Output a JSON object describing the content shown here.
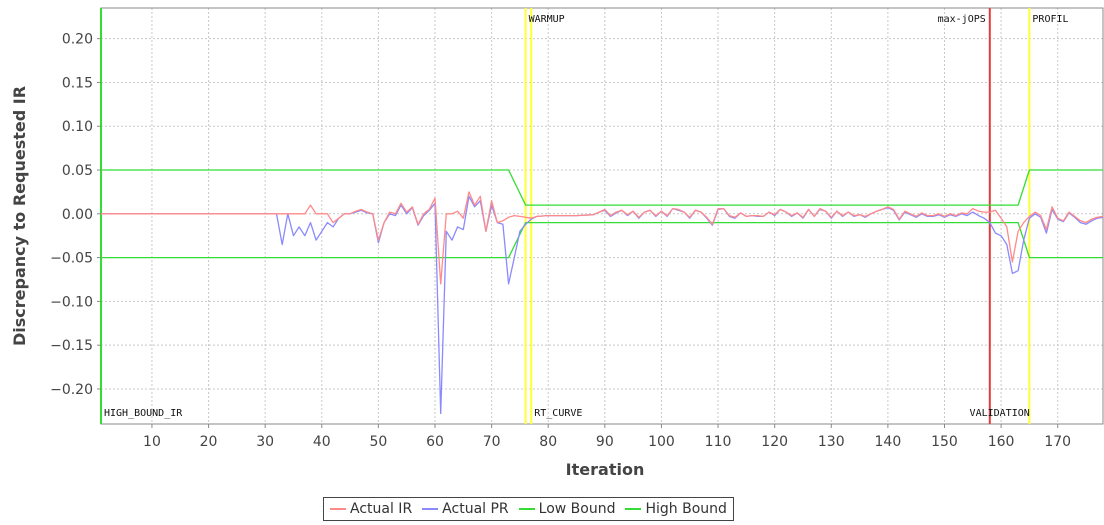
{
  "colors": {
    "actual_ir": "#ff8a8a",
    "actual_pr": "#8a8aff",
    "bounds": "#33dd33",
    "phase_marker": "#ffff33",
    "max_jops_marker": "#e23b3b",
    "grid": "#c8c8c8",
    "axis": "#888888"
  },
  "legend": {
    "items": [
      {
        "label": "Actual IR",
        "color": "#ff8a8a"
      },
      {
        "label": "Actual PR",
        "color": "#8a8aff"
      },
      {
        "label": "Low Bound",
        "color": "#33dd33"
      },
      {
        "label": "High Bound",
        "color": "#33dd33"
      }
    ]
  },
  "chart_data": {
    "type": "line",
    "title": "",
    "xlabel": "Iteration",
    "ylabel": "Discrepancy to Requested IR",
    "xlim": [
      1,
      178
    ],
    "ylim": [
      -0.24,
      0.235
    ],
    "x_ticks": [
      10,
      20,
      30,
      40,
      50,
      60,
      70,
      80,
      90,
      100,
      110,
      120,
      130,
      140,
      150,
      160,
      170
    ],
    "y_ticks": [
      0.2,
      0.15,
      0.1,
      0.05,
      0.0,
      -0.05,
      -0.1,
      -0.15,
      -0.2
    ],
    "y_tick_labels": [
      "0.20",
      "0.15",
      "0.10",
      "0.05",
      "0.00",
      "−0.05",
      "−0.10",
      "−0.15",
      "−0.20"
    ],
    "grid": true,
    "legend_position": "bottom",
    "markers": [
      {
        "x": 1,
        "color": "#33dd33",
        "label_top": "",
        "label_bottom": "HIGH_BOUND_IR"
      },
      {
        "x": 76,
        "color": "#ffff33",
        "label_top": "WARMUP",
        "label_bottom": ""
      },
      {
        "x": 77,
        "color": "#ffff33",
        "label_top": "",
        "label_bottom": "RT_CURVE"
      },
      {
        "x": 158,
        "color": "#e23b3b",
        "label_top": "max-jOPS",
        "label_bottom": "VALIDATION"
      },
      {
        "x": 165,
        "color": "#ffff33",
        "label_top": "PROFIL",
        "label_bottom": ""
      }
    ],
    "series": [
      {
        "name": "Actual IR",
        "color": "#ff8a8a",
        "points": [
          [
            1,
            0
          ],
          [
            32,
            0
          ],
          [
            33,
            0
          ],
          [
            34,
            0
          ],
          [
            35,
            0
          ],
          [
            36,
            0
          ],
          [
            37,
            0
          ],
          [
            38,
            0.01
          ],
          [
            39,
            0
          ],
          [
            40,
            0
          ],
          [
            41,
            0
          ],
          [
            42,
            -0.01
          ],
          [
            43,
            -0.005
          ],
          [
            44,
            0
          ],
          [
            45,
            0
          ],
          [
            46,
            0.003
          ],
          [
            47,
            0.005
          ],
          [
            48,
            0.002
          ],
          [
            49,
            0
          ],
          [
            50,
            -0.03
          ],
          [
            51,
            -0.01
          ],
          [
            52,
            0.002
          ],
          [
            53,
            0
          ],
          [
            54,
            0.012
          ],
          [
            55,
            0.002
          ],
          [
            56,
            0.008
          ],
          [
            57,
            -0.012
          ],
          [
            58,
            0
          ],
          [
            59,
            0.005
          ],
          [
            60,
            0.018
          ],
          [
            61,
            -0.08
          ],
          [
            62,
            0
          ],
          [
            63,
            0
          ],
          [
            64,
            0.003
          ],
          [
            65,
            -0.005
          ],
          [
            66,
            0.025
          ],
          [
            67,
            0.01
          ],
          [
            68,
            0.02
          ],
          [
            69,
            -0.02
          ],
          [
            70,
            0.015
          ],
          [
            71,
            -0.01
          ],
          [
            72,
            -0.008
          ],
          [
            73,
            -0.004
          ],
          [
            74,
            -0.002
          ],
          [
            75,
            -0.003
          ],
          [
            76,
            -0.004
          ],
          [
            77,
            -0.005
          ],
          [
            78,
            -0.003
          ],
          [
            80,
            -0.002
          ],
          [
            85,
            -0.002
          ],
          [
            88,
            -0.001
          ],
          [
            89,
            0.002
          ],
          [
            90,
            0.005
          ],
          [
            91,
            -0.002
          ],
          [
            92,
            0.002
          ],
          [
            93,
            0.004
          ],
          [
            94,
            -0.001
          ],
          [
            95,
            0.003
          ],
          [
            96,
            -0.004
          ],
          [
            97,
            0.002
          ],
          [
            98,
            0.004
          ],
          [
            99,
            -0.002
          ],
          [
            100,
            0.003
          ],
          [
            101,
            -0.002
          ],
          [
            102,
            0.006
          ],
          [
            103,
            0.005
          ],
          [
            104,
            0.002
          ],
          [
            105,
            -0.004
          ],
          [
            106,
            0.004
          ],
          [
            107,
            0.002
          ],
          [
            108,
            -0.004
          ],
          [
            109,
            -0.012
          ],
          [
            110,
            0.006
          ],
          [
            111,
            0.006
          ],
          [
            112,
            -0.002
          ],
          [
            113,
            -0.004
          ],
          [
            114,
            0.001
          ],
          [
            115,
            -0.003
          ],
          [
            116,
            -0.002
          ],
          [
            117,
            -0.002
          ],
          [
            118,
            -0.003
          ],
          [
            119,
            0.002
          ],
          [
            120,
            -0.001
          ],
          [
            121,
            0.005
          ],
          [
            122,
            0.002
          ],
          [
            123,
            -0.002
          ],
          [
            124,
            0.001
          ],
          [
            125,
            -0.004
          ],
          [
            126,
            0.005
          ],
          [
            127,
            -0.003
          ],
          [
            128,
            0.006
          ],
          [
            129,
            0.003
          ],
          [
            130,
            -0.004
          ],
          [
            131,
            0.003
          ],
          [
            132,
            -0.002
          ],
          [
            133,
            0.002
          ],
          [
            134,
            -0.002
          ],
          [
            135,
            -0.001
          ],
          [
            136,
            -0.003
          ],
          [
            137,
            0
          ],
          [
            138,
            0.003
          ],
          [
            139,
            0.005
          ],
          [
            140,
            0.008
          ],
          [
            141,
            0.005
          ],
          [
            142,
            -0.006
          ],
          [
            143,
            0.003
          ],
          [
            144,
            0
          ],
          [
            145,
            -0.003
          ],
          [
            146,
            0.001
          ],
          [
            147,
            -0.002
          ],
          [
            148,
            -0.002
          ],
          [
            149,
            0
          ],
          [
            150,
            -0.003
          ],
          [
            151,
            0
          ],
          [
            152,
            -0.002
          ],
          [
            153,
            0.001
          ],
          [
            154,
            0
          ],
          [
            155,
            0.006
          ],
          [
            156,
            0.003
          ],
          [
            157,
            0.002
          ],
          [
            158,
            0.002
          ],
          [
            159,
            0.004
          ],
          [
            160,
            -0.005
          ],
          [
            161,
            -0.015
          ],
          [
            162,
            -0.055
          ],
          [
            163,
            -0.02
          ],
          [
            164,
            -0.01
          ],
          [
            165,
            -0.003
          ],
          [
            166,
            0.002
          ],
          [
            167,
            -0.002
          ],
          [
            168,
            -0.018
          ],
          [
            169,
            0.008
          ],
          [
            170,
            -0.005
          ],
          [
            171,
            -0.008
          ],
          [
            172,
            0.002
          ],
          [
            173,
            -0.003
          ],
          [
            174,
            -0.008
          ],
          [
            175,
            -0.01
          ],
          [
            176,
            -0.006
          ],
          [
            177,
            -0.004
          ],
          [
            178,
            -0.003
          ]
        ]
      },
      {
        "name": "Actual PR",
        "color": "#8a8aff",
        "points": [
          [
            1,
            0
          ],
          [
            32,
            0
          ],
          [
            33,
            -0.035
          ],
          [
            34,
            0
          ],
          [
            35,
            -0.025
          ],
          [
            36,
            -0.015
          ],
          [
            37,
            -0.025
          ],
          [
            38,
            -0.01
          ],
          [
            39,
            -0.03
          ],
          [
            40,
            -0.02
          ],
          [
            41,
            -0.01
          ],
          [
            42,
            -0.015
          ],
          [
            43,
            -0.005
          ],
          [
            44,
            0
          ],
          [
            45,
            0
          ],
          [
            46,
            0.002
          ],
          [
            47,
            0.004
          ],
          [
            48,
            0.001
          ],
          [
            49,
            0
          ],
          [
            50,
            -0.033
          ],
          [
            51,
            -0.01
          ],
          [
            52,
            0
          ],
          [
            53,
            -0.002
          ],
          [
            54,
            0.01
          ],
          [
            55,
            0
          ],
          [
            56,
            0.007
          ],
          [
            57,
            -0.013
          ],
          [
            58,
            -0.002
          ],
          [
            59,
            0.004
          ],
          [
            60,
            0.012
          ],
          [
            61,
            -0.228
          ],
          [
            62,
            -0.02
          ],
          [
            63,
            -0.03
          ],
          [
            64,
            -0.015
          ],
          [
            65,
            -0.018
          ],
          [
            66,
            0.02
          ],
          [
            67,
            0.008
          ],
          [
            68,
            0.015
          ],
          [
            69,
            -0.02
          ],
          [
            70,
            0.01
          ],
          [
            71,
            -0.01
          ],
          [
            72,
            -0.012
          ],
          [
            73,
            -0.08
          ],
          [
            74,
            -0.05
          ],
          [
            75,
            -0.02
          ],
          [
            76,
            -0.012
          ],
          [
            77,
            -0.006
          ],
          [
            78,
            -0.003
          ],
          [
            80,
            -0.002
          ],
          [
            85,
            -0.002
          ],
          [
            88,
            -0.001
          ],
          [
            89,
            0.002
          ],
          [
            90,
            0.004
          ],
          [
            91,
            -0.003
          ],
          [
            92,
            0.001
          ],
          [
            93,
            0.004
          ],
          [
            94,
            -0.002
          ],
          [
            95,
            0.003
          ],
          [
            96,
            -0.005
          ],
          [
            97,
            0.002
          ],
          [
            98,
            0.004
          ],
          [
            99,
            -0.003
          ],
          [
            100,
            0.003
          ],
          [
            101,
            -0.003
          ],
          [
            102,
            0.006
          ],
          [
            103,
            0.004
          ],
          [
            104,
            0.002
          ],
          [
            105,
            -0.005
          ],
          [
            106,
            0.004
          ],
          [
            107,
            0.002
          ],
          [
            108,
            -0.005
          ],
          [
            109,
            -0.013
          ],
          [
            110,
            0.005
          ],
          [
            111,
            0.006
          ],
          [
            112,
            -0.003
          ],
          [
            113,
            -0.005
          ],
          [
            114,
            0.001
          ],
          [
            115,
            -0.003
          ],
          [
            116,
            -0.002
          ],
          [
            117,
            -0.003
          ],
          [
            118,
            -0.003
          ],
          [
            119,
            0.002
          ],
          [
            120,
            -0.002
          ],
          [
            121,
            0.005
          ],
          [
            122,
            0.002
          ],
          [
            123,
            -0.003
          ],
          [
            124,
            0.001
          ],
          [
            125,
            -0.005
          ],
          [
            126,
            0.005
          ],
          [
            127,
            -0.003
          ],
          [
            128,
            0.005
          ],
          [
            129,
            0.003
          ],
          [
            130,
            -0.005
          ],
          [
            131,
            0.003
          ],
          [
            132,
            -0.003
          ],
          [
            133,
            0.002
          ],
          [
            134,
            -0.003
          ],
          [
            135,
            -0.001
          ],
          [
            136,
            -0.004
          ],
          [
            137,
            0
          ],
          [
            138,
            0.003
          ],
          [
            139,
            0.005
          ],
          [
            140,
            0.007
          ],
          [
            141,
            0.004
          ],
          [
            142,
            -0.007
          ],
          [
            143,
            0.002
          ],
          [
            144,
            -0.001
          ],
          [
            145,
            -0.004
          ],
          [
            146,
            0
          ],
          [
            147,
            -0.003
          ],
          [
            148,
            -0.003
          ],
          [
            149,
            -0.001
          ],
          [
            150,
            -0.004
          ],
          [
            151,
            -0.001
          ],
          [
            152,
            -0.003
          ],
          [
            153,
            0
          ],
          [
            154,
            -0.002
          ],
          [
            155,
            0.002
          ],
          [
            156,
            -0.002
          ],
          [
            157,
            -0.005
          ],
          [
            158,
            -0.01
          ],
          [
            159,
            -0.022
          ],
          [
            160,
            -0.025
          ],
          [
            161,
            -0.035
          ],
          [
            162,
            -0.068
          ],
          [
            163,
            -0.065
          ],
          [
            164,
            -0.03
          ],
          [
            165,
            -0.005
          ],
          [
            166,
            0
          ],
          [
            167,
            -0.004
          ],
          [
            168,
            -0.022
          ],
          [
            169,
            0.005
          ],
          [
            170,
            -0.006
          ],
          [
            171,
            -0.009
          ],
          [
            172,
            0.001
          ],
          [
            173,
            -0.004
          ],
          [
            174,
            -0.01
          ],
          [
            175,
            -0.012
          ],
          [
            176,
            -0.008
          ],
          [
            177,
            -0.005
          ],
          [
            178,
            -0.004
          ]
        ]
      },
      {
        "name": "Low Bound",
        "color": "#33dd33",
        "points": [
          [
            1,
            -0.05
          ],
          [
            73,
            -0.05
          ],
          [
            76,
            -0.01
          ],
          [
            163,
            -0.01
          ],
          [
            165,
            -0.05
          ],
          [
            178,
            -0.05
          ]
        ]
      },
      {
        "name": "High Bound",
        "color": "#33dd33",
        "points": [
          [
            1,
            0.05
          ],
          [
            73,
            0.05
          ],
          [
            76,
            0.01
          ],
          [
            163,
            0.01
          ],
          [
            165,
            0.05
          ],
          [
            178,
            0.05
          ]
        ]
      }
    ]
  }
}
